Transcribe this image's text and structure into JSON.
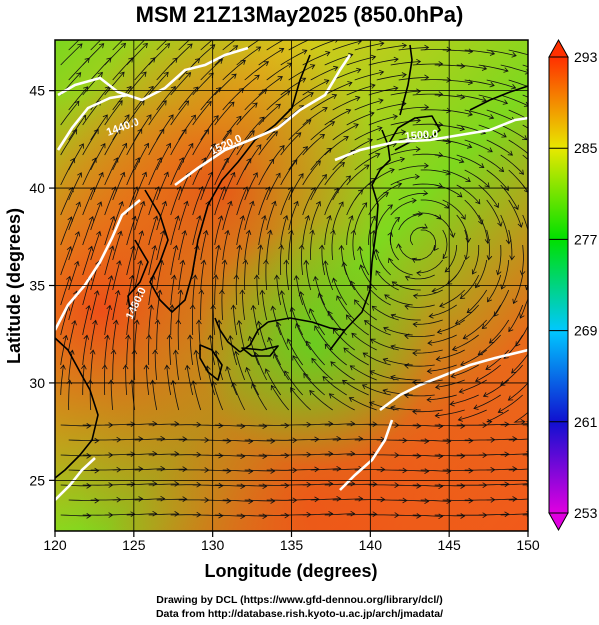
{
  "title": "MSM 21Z13May2025 (850.0hPa)",
  "axes": {
    "xlabel": "Longitude (degrees)",
    "ylabel": "Latitude  (degrees)",
    "xticks": [
      "120",
      "125",
      "130",
      "135",
      "140",
      "145",
      "150"
    ],
    "yticks": [
      "25",
      "30",
      "35",
      "40",
      "45"
    ],
    "xrange": [
      120,
      150
    ],
    "yrange": [
      22.4,
      47.6
    ]
  },
  "colorbar": {
    "ticks": [
      "253",
      "261",
      "269",
      "277",
      "285",
      "293"
    ],
    "range": [
      253,
      293
    ],
    "colors": [
      "#e000e0",
      "#1010d0",
      "#00c8ff",
      "#00e000",
      "#e8e800",
      "#ff3000"
    ]
  },
  "contour_labels": [
    "1440.0",
    "1520.0",
    "1500.0",
    "1480.0"
  ],
  "credits": {
    "line1": "Drawing by DCL (https://www.gfd-dennou.org/library/dcl/)",
    "line2": "Data from http://database.rish.kyoto-u.ac.jp/arch/jmadata/"
  }
}
